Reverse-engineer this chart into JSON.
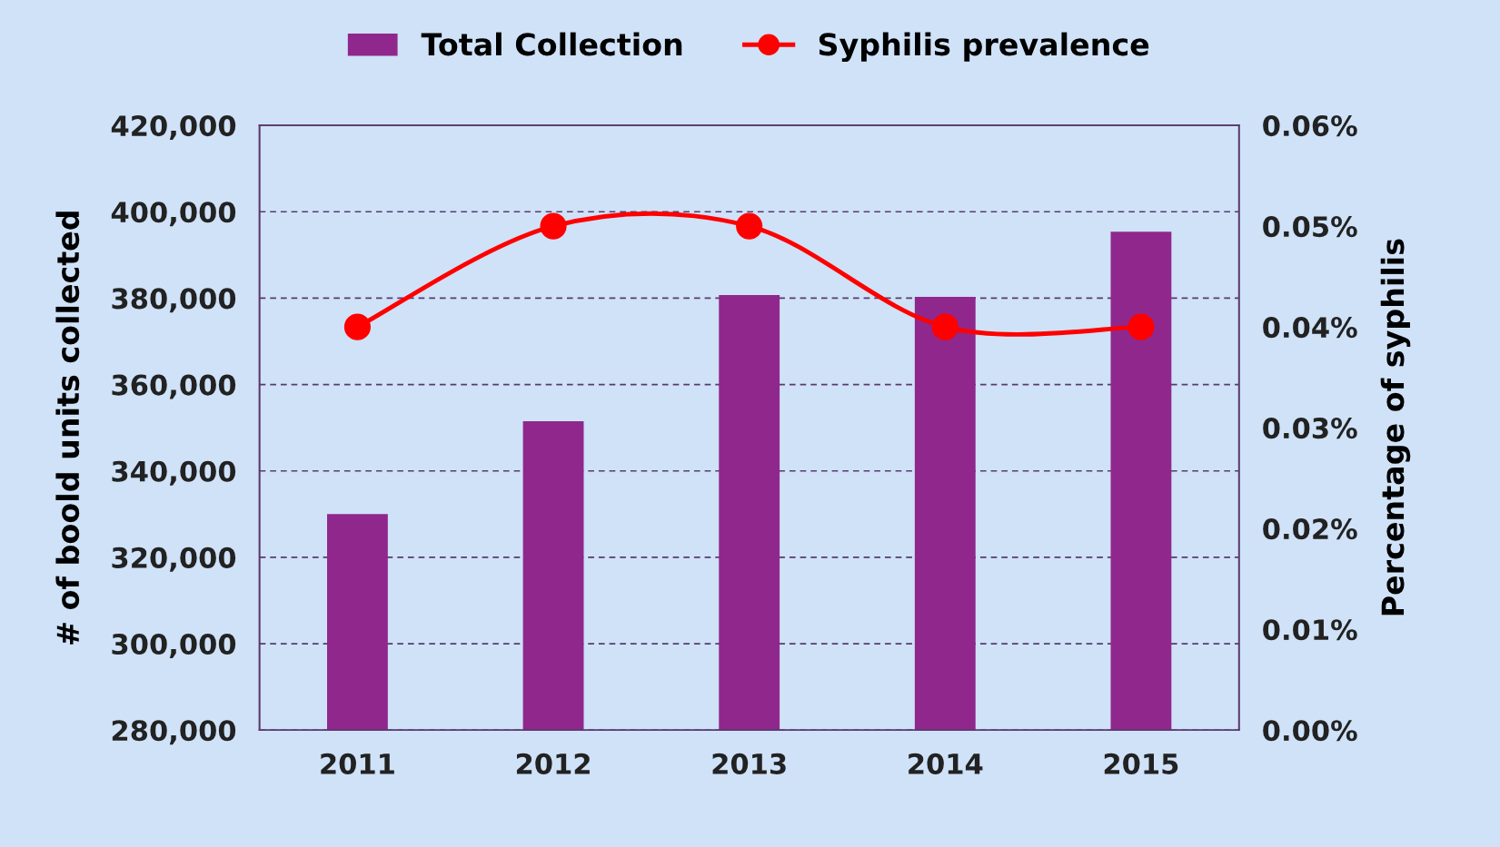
{
  "chart_data": {
    "type": "bar",
    "categories": [
      "2011",
      "2012",
      "2013",
      "2014",
      "2015"
    ],
    "series": [
      {
        "name": "Total Collection",
        "color": "#90278d",
        "values": [
          330000,
          351500,
          380700,
          380300,
          395400
        ]
      },
      {
        "name": "Syphilis prevalence",
        "type": "line",
        "axis": "y2",
        "color": "#ff0000",
        "marker": "circle",
        "values": [
          0.04,
          0.05,
          0.05,
          0.04,
          0.04
        ]
      }
    ],
    "ylabel": "# of boold units collected",
    "y2label": "Percentage of syphilis",
    "ylim": [
      280000,
      420000
    ],
    "yticks": [
      {
        "value": 280000,
        "label": "280,000"
      },
      {
        "value": 300000,
        "label": "300,000"
      },
      {
        "value": 320000,
        "label": "320,000"
      },
      {
        "value": 340000,
        "label": "340,000"
      },
      {
        "value": 360000,
        "label": "360,000"
      },
      {
        "value": 380000,
        "label": "380,000"
      },
      {
        "value": 400000,
        "label": "400,000"
      },
      {
        "value": 420000,
        "label": "420,000"
      }
    ],
    "y2lim": [
      0,
      0.06
    ],
    "y2ticks": [
      {
        "value": 0,
        "label": "0.00%"
      },
      {
        "value": 0.01,
        "label": "0.01%"
      },
      {
        "value": 0.02,
        "label": "0.02%"
      },
      {
        "value": 0.03,
        "label": "0.03%"
      },
      {
        "value": 0.04,
        "label": "0.04%"
      },
      {
        "value": 0.05,
        "label": "0.05%"
      },
      {
        "value": 0.06,
        "label": "0.06%"
      }
    ],
    "grid": "y",
    "legend": "top"
  }
}
